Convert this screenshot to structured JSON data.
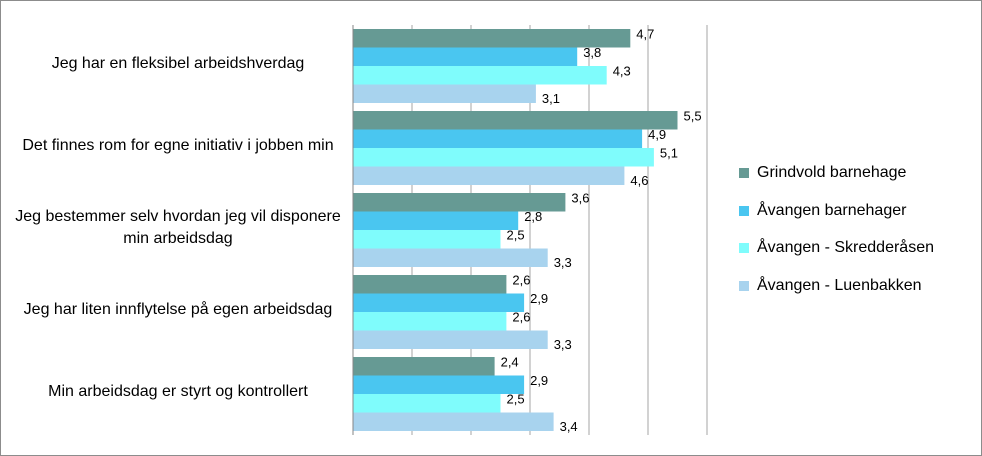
{
  "chart_data": {
    "type": "bar",
    "orientation": "horizontal",
    "categories": [
      "Jeg har en fleksibel arbeidshverdag",
      "Det finnes rom for egne initiativ i jobben min",
      "Jeg bestemmer selv hvordan jeg vil disponere min arbeidsdag",
      "Jeg har liten innflytelse på egen arbeidsdag",
      "Min arbeidsdag er styrt og kontrollert"
    ],
    "series": [
      {
        "name": "Grindvold barnehage",
        "color": "#669a94",
        "values": [
          4.7,
          5.5,
          3.6,
          2.6,
          2.4
        ],
        "value_labels": [
          "4,7",
          "5,5",
          "3,6",
          "2,6",
          "2,4"
        ]
      },
      {
        "name": "Åvangen barnehager",
        "color": "#4ac6f0",
        "values": [
          3.8,
          4.9,
          2.8,
          2.9,
          2.9
        ],
        "value_labels": [
          "3,8",
          "4,9",
          "2,8",
          "2,9",
          "2,9"
        ]
      },
      {
        "name": "Åvangen - Skredderåsen",
        "color": "#7ffcfc",
        "values": [
          4.3,
          5.1,
          2.5,
          2.6,
          2.5
        ],
        "value_labels": [
          "4,3",
          "5,1",
          "2,5",
          "2,6",
          "2,5"
        ]
      },
      {
        "name": "Åvangen - Luenbakken",
        "color": "#a8d3ee",
        "values": [
          3.1,
          4.6,
          3.3,
          3.3,
          3.4
        ],
        "value_labels": [
          "3,1",
          "4,6",
          "3,3",
          "3,3",
          "3,4"
        ]
      }
    ],
    "xlim": [
      0,
      6
    ],
    "xticks": [
      0,
      1,
      2,
      3,
      4,
      5,
      6
    ],
    "grid": true,
    "legend": "right"
  }
}
